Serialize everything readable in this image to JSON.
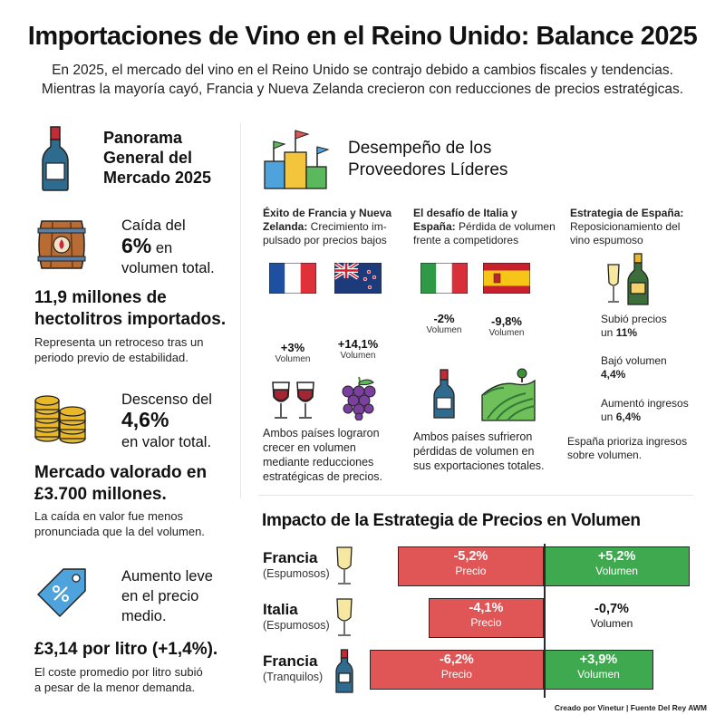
{
  "header": {
    "title": "Importaciones de Vino en el Reino Unido: Balance 2025",
    "subtitle_line1": "En 2025, el mercado del vino en el Reino Unido se contrajo debido a cambios fiscales y tendencias.",
    "subtitle_line2": "Mientras la mayoría cayó, Francia y Nueva Zelanda crecieron con reducciones de precios estratégicas."
  },
  "overview": {
    "heading_l1": "Panorama",
    "heading_l2": "General del",
    "heading_l3": "Mercado 2025",
    "volume": {
      "prefix": "Caída del",
      "value": "6%",
      "suffix1": "en",
      "suffix2": "volumen total.",
      "big_l1": "11,9 millones de",
      "big_l2": "hectolitros importados.",
      "note_l1": "Representa un retroceso tras un",
      "note_l2": "periodo previo de estabilidad."
    },
    "value": {
      "prefix": "Descenso del",
      "value": "4,6%",
      "suffix": "en valor total.",
      "big_l1": "Mercado valorado en",
      "big_l2": "£3.700 millones.",
      "note_l1": "La caída en valor fue menos",
      "note_l2": "pronunciada que la del volumen."
    },
    "price": {
      "l1": "Aumento leve",
      "l2": "en el precio",
      "l3": "medio.",
      "big": "£3,14 por litro (+1,4%).",
      "note_l1": "El coste promedio por litro subió",
      "note_l2": "a pesar de la menor demanda."
    }
  },
  "suppliers": {
    "title_l1": "Desempeño de los",
    "title_l2": "Proveedores Líderes",
    "france_nz": {
      "head_b1": "Éxito de Francia y Nueva",
      "head_b2": "Zelanda:",
      "head_t2": " Crecimiento im-",
      "head_t3": "pulsado por precios bajos",
      "fr_pct": "+3%",
      "fr_sub": "Volumen",
      "nz_pct": "+14,1%",
      "nz_sub": "Volumen",
      "note_l1": "Ambos países lograron",
      "note_l2": "crecer en volumen",
      "note_l3": "mediante reducciones",
      "note_l4": "estratégicas de precios."
    },
    "italy_spain": {
      "head_b1": "El desafío de Italia y",
      "head_b2": "España:",
      "head_t2": " Pérdida de volumen",
      "head_t3": "frente a competidores",
      "it_pct": "-2%",
      "it_sub": "Volumen",
      "es_pct": "-9,8%",
      "es_sub": "Volumen",
      "note_l1": "Ambos países sufrieron",
      "note_l2": "pérdidas de volumen en",
      "note_l3": "sus exportaciones totales."
    },
    "spain_strategy": {
      "head_b1": "Estrategia de España:",
      "head_t2": "Reposicionamiento del",
      "head_t3": "vino espumoso",
      "s1_l1": "Subió precios",
      "s1_l2": "un ",
      "s1_v": "11%",
      "s2_l1": "Bajó volumen",
      "s2_v": "4,4%",
      "s3_l1": "Aumentó ingresos",
      "s3_l2": "un ",
      "s3_v": "6,4%",
      "note_l1": "España prioriza ingresos",
      "note_l2": "sobre volumen."
    }
  },
  "impact": {
    "title": "Impacto de la Estrategia de Precios en Volumen"
  },
  "chart_data": {
    "type": "bar",
    "title": "Impacto de la Estrategia de Precios en Volumen",
    "categories": [
      "Francia (Espumosos)",
      "Italia (Espumosos)",
      "Francia (Tranquilos)"
    ],
    "rows": [
      {
        "name": "Francia",
        "sub": "(Espumosos)",
        "price": -5.2,
        "volume": 5.2,
        "price_label": "-5,2%",
        "volume_label": "+5,2%"
      },
      {
        "name": "Italia",
        "sub": "(Espumosos)",
        "price": -4.1,
        "volume": -0.7,
        "price_label": "-4,1%",
        "volume_label": "-0,7%"
      },
      {
        "name": "Francia",
        "sub": "(Tranquilos)",
        "price": -6.2,
        "volume": 3.9,
        "price_label": "-6,2%",
        "volume_label": "+3,9%"
      }
    ],
    "series": [
      {
        "name": "Precio",
        "values": [
          -5.2,
          -4.1,
          -6.2
        ]
      },
      {
        "name": "Volumen",
        "values": [
          5.2,
          -0.7,
          3.9
        ]
      }
    ],
    "colors": {
      "price": "#e05656",
      "volume": "#3fa94f"
    }
  },
  "footer": "Creado por Vinetur | Fuente Del Rey AWM"
}
